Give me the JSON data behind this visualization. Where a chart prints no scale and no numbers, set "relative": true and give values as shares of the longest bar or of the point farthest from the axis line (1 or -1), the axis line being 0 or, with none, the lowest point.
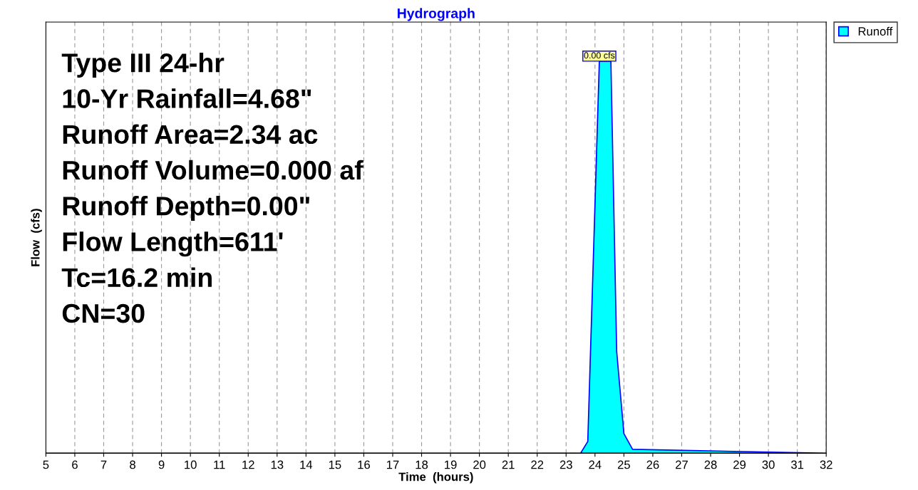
{
  "chart_data": {
    "type": "area",
    "title": "Hydrograph",
    "xlabel": "Time  (hours)",
    "ylabel": "Flow  (cfs)",
    "relative": true,
    "x": [
      5,
      23.5,
      23.75,
      24.15,
      24.55,
      24.75,
      25.0,
      25.3,
      32
    ],
    "series": [
      {
        "name": "Runoff",
        "color": "#00ffff",
        "values": [
          0,
          0,
          0.03,
          1,
          1,
          0.26,
          0.05,
          0.01,
          0
        ]
      }
    ],
    "xlim": [
      5,
      32
    ],
    "xticks": [
      5,
      6,
      7,
      8,
      9,
      10,
      11,
      12,
      13,
      14,
      15,
      16,
      17,
      18,
      19,
      20,
      21,
      22,
      23,
      24,
      25,
      26,
      27,
      28,
      29,
      30,
      31,
      32
    ],
    "annotations": [
      {
        "text": "0.00 cfs",
        "x": 24.15,
        "y": 1
      },
      "Type III 24-hr",
      "10-Yr Rainfall=4.68\"",
      "Runoff Area=2.34 ac",
      "Runoff Volume=0.000 af",
      "Runoff Depth=0.00\"",
      "Flow Length=611'",
      "Tc=16.2 min",
      "CN=30"
    ],
    "grid": true,
    "legend": "top right"
  }
}
